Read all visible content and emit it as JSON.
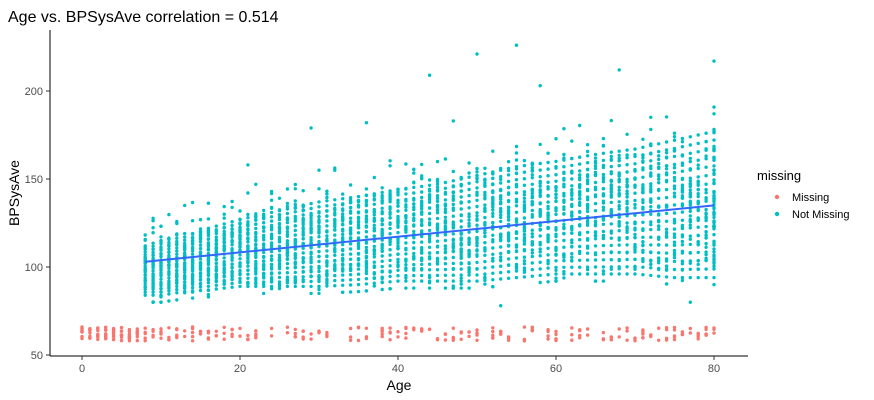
{
  "chart_data": {
    "type": "scatter",
    "title": "Age vs. BPSysAve correlation = 0.514",
    "xlabel": "Age",
    "ylabel": "BPSysAve",
    "xlim": [
      -5,
      82
    ],
    "ylim": [
      50,
      235
    ],
    "x_ticks": [
      0,
      20,
      40,
      60,
      80
    ],
    "y_ticks": [
      50,
      100,
      150,
      200
    ],
    "grid": false,
    "legend": {
      "title": "missing",
      "position": "right",
      "entries": [
        "Missing",
        "Not Missing"
      ]
    },
    "colors": {
      "Missing": "#F8766D",
      "Not Missing": "#00BFC4",
      "trend": "#3366FF"
    },
    "series": [
      {
        "name": "Missing",
        "x_range": [
          0,
          80
        ],
        "y_range": [
          58,
          66
        ],
        "dense_x_range": [
          0,
          7
        ]
      },
      {
        "name": "Not Missing",
        "x_range": [
          8,
          80
        ],
        "columns": [
          {
            "x": 8,
            "min": 80,
            "max": 130
          },
          {
            "x": 10,
            "min": 80,
            "max": 133
          },
          {
            "x": 13,
            "min": 82,
            "max": 135
          },
          {
            "x": 16,
            "min": 83,
            "max": 140
          },
          {
            "x": 20,
            "min": 85,
            "max": 145
          },
          {
            "x": 25,
            "min": 85,
            "max": 150
          },
          {
            "x": 30,
            "min": 85,
            "max": 155
          },
          {
            "x": 35,
            "min": 86,
            "max": 158
          },
          {
            "x": 40,
            "min": 88,
            "max": 162
          },
          {
            "x": 45,
            "min": 88,
            "max": 165
          },
          {
            "x": 50,
            "min": 88,
            "max": 170
          },
          {
            "x": 55,
            "min": 90,
            "max": 175
          },
          {
            "x": 60,
            "min": 92,
            "max": 178
          },
          {
            "x": 65,
            "min": 92,
            "max": 182
          },
          {
            "x": 70,
            "min": 92,
            "max": 185
          },
          {
            "x": 75,
            "min": 90,
            "max": 190
          },
          {
            "x": 80,
            "min": 90,
            "max": 195
          }
        ],
        "outliers": [
          {
            "x": 44,
            "y": 209
          },
          {
            "x": 50,
            "y": 221
          },
          {
            "x": 55,
            "y": 226
          },
          {
            "x": 68,
            "y": 212
          },
          {
            "x": 80,
            "y": 217
          },
          {
            "x": 58,
            "y": 203
          },
          {
            "x": 29,
            "y": 179
          },
          {
            "x": 36,
            "y": 182
          },
          {
            "x": 47,
            "y": 183
          },
          {
            "x": 21,
            "y": 158
          },
          {
            "x": 53,
            "y": 78
          },
          {
            "x": 77,
            "y": 80
          }
        ]
      }
    ],
    "trend_line": {
      "method": "lm",
      "x": [
        8,
        80
      ],
      "y": [
        103,
        135
      ]
    }
  }
}
